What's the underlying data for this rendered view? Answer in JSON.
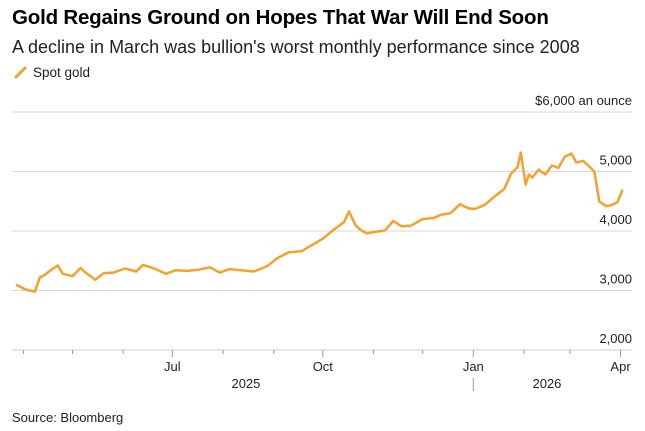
{
  "header": {
    "title": "Gold Regains Ground on Hopes That War Will End Soon",
    "subtitle": "A decline in March was bullion's worst monthly performance since 2008"
  },
  "footer": {
    "source": "Source: Bloomberg"
  },
  "colors": {
    "series": "#f5a12d",
    "grid": "#d9d9d9",
    "axis": "#cccccc",
    "text": "#222222"
  },
  "chart_data": {
    "type": "line",
    "title": "Gold Regains Ground on Hopes That War Will End Soon",
    "subtitle": "A decline in March was bullion's worst monthly performance since 2008",
    "xlabel": "",
    "ylabel": "$6,000 an ounce",
    "ylim": [
      2000,
      6000
    ],
    "y_ticks": [
      2000,
      3000,
      4000,
      5000,
      6000
    ],
    "y_tick_labels": [
      "2,000",
      "3,000",
      "4,000",
      "5,000",
      "$6,000 an ounce"
    ],
    "x_range": [
      "2025-03-25",
      "2026-04-08"
    ],
    "x_ticks": [
      {
        "date": "2025-07-01",
        "label": "Jul"
      },
      {
        "date": "2025-10-01",
        "label": "Oct"
      },
      {
        "date": "2026-01-01",
        "label": "Jan"
      },
      {
        "date": "2026-04-01",
        "label": "Apr"
      }
    ],
    "year_labels": [
      {
        "date": "2025-08-15",
        "label": "2025"
      },
      {
        "date": "2026-02-15",
        "label": "2026"
      }
    ],
    "year_divider": "2026-01-01",
    "grid": true,
    "legend_position": "top-left",
    "series": [
      {
        "name": "Spot gold",
        "x": [
          "2025-03-28",
          "2025-04-02",
          "2025-04-05",
          "2025-04-08",
          "2025-04-11",
          "2025-04-14",
          "2025-04-17",
          "2025-04-22",
          "2025-04-25",
          "2025-05-01",
          "2025-05-06",
          "2025-05-09",
          "2025-05-13",
          "2025-05-15",
          "2025-05-20",
          "2025-05-26",
          "2025-06-02",
          "2025-06-09",
          "2025-06-13",
          "2025-06-20",
          "2025-06-27",
          "2025-07-03",
          "2025-07-10",
          "2025-07-17",
          "2025-07-24",
          "2025-07-30",
          "2025-08-05",
          "2025-08-12",
          "2025-08-20",
          "2025-08-28",
          "2025-09-03",
          "2025-09-10",
          "2025-09-18",
          "2025-09-24",
          "2025-10-01",
          "2025-10-08",
          "2025-10-14",
          "2025-10-17",
          "2025-10-21",
          "2025-10-24",
          "2025-10-28",
          "2025-11-03",
          "2025-11-08",
          "2025-11-13",
          "2025-11-18",
          "2025-11-24",
          "2025-12-01",
          "2025-12-08",
          "2025-12-12",
          "2025-12-18",
          "2025-12-24",
          "2025-12-29",
          "2026-01-02",
          "2026-01-08",
          "2026-01-14",
          "2026-01-20",
          "2026-01-24",
          "2026-01-28",
          "2026-01-30",
          "2026-02-02",
          "2026-02-04",
          "2026-02-06",
          "2026-02-10",
          "2026-02-14",
          "2026-02-18",
          "2026-02-22",
          "2026-02-26",
          "2026-03-02",
          "2026-03-05",
          "2026-03-09",
          "2026-03-12",
          "2026-03-16",
          "2026-03-19",
          "2026-03-23",
          "2026-03-26",
          "2026-03-30",
          "2026-04-02"
        ],
        "values": [
          3090,
          3020,
          3000,
          2980,
          3220,
          3260,
          3330,
          3420,
          3280,
          3240,
          3380,
          3300,
          3220,
          3180,
          3290,
          3300,
          3370,
          3320,
          3430,
          3370,
          3280,
          3340,
          3330,
          3350,
          3390,
          3300,
          3360,
          3340,
          3320,
          3410,
          3540,
          3640,
          3660,
          3760,
          3870,
          4030,
          4150,
          4330,
          4100,
          4020,
          3960,
          3990,
          4010,
          4170,
          4080,
          4090,
          4200,
          4220,
          4270,
          4300,
          4450,
          4380,
          4370,
          4440,
          4580,
          4710,
          4960,
          5070,
          5320,
          4780,
          4950,
          4900,
          5030,
          4950,
          5100,
          5060,
          5250,
          5300,
          5150,
          5180,
          5110,
          5000,
          4500,
          4420,
          4430,
          4480,
          4680
        ]
      }
    ]
  }
}
